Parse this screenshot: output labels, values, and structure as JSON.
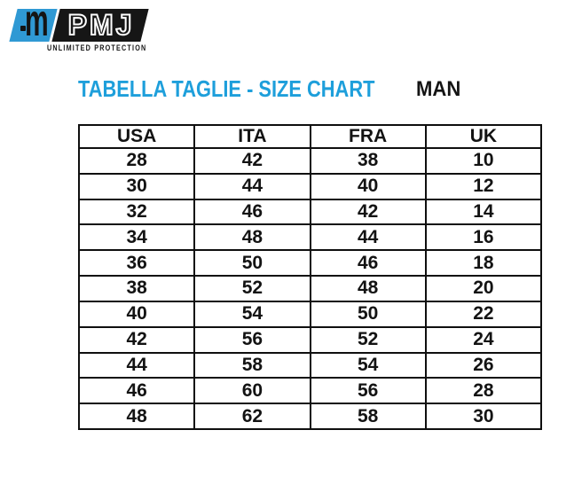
{
  "logo": {
    "brand": "PMJ",
    "tagline": "UNLIMITED PROTECTION",
    "m_glyph": "m",
    "blue": "#2f99d4",
    "black": "#161616"
  },
  "header": {
    "title": "TABELLA TAGLIE - SIZE CHART",
    "gender_label": "MAN",
    "title_color": "#1e9fdb"
  },
  "chart_data": {
    "type": "table",
    "title": "TABELLA TAGLIE - SIZE CHART",
    "subtitle": "MAN",
    "columns": [
      "USA",
      "ITA",
      "FRA",
      "UK"
    ],
    "rows": [
      [
        "28",
        "42",
        "38",
        "10"
      ],
      [
        "30",
        "44",
        "40",
        "12"
      ],
      [
        "32",
        "46",
        "42",
        "14"
      ],
      [
        "34",
        "48",
        "44",
        "16"
      ],
      [
        "36",
        "50",
        "46",
        "18"
      ],
      [
        "38",
        "52",
        "48",
        "20"
      ],
      [
        "40",
        "54",
        "50",
        "22"
      ],
      [
        "42",
        "56",
        "52",
        "24"
      ],
      [
        "44",
        "58",
        "54",
        "26"
      ],
      [
        "46",
        "60",
        "56",
        "28"
      ],
      [
        "48",
        "62",
        "58",
        "30"
      ]
    ]
  }
}
